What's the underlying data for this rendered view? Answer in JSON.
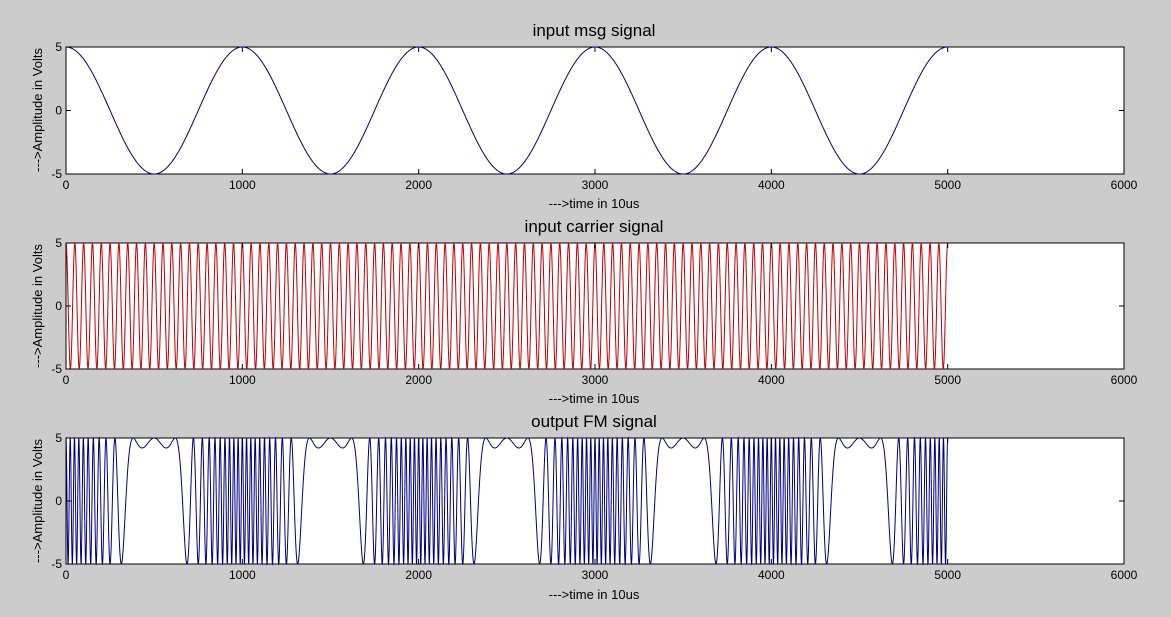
{
  "figure": {
    "background": "#cccccc"
  },
  "chart_data": [
    {
      "type": "line",
      "title": "input msg signal",
      "xlabel": "--->time in 10us",
      "ylabel": "--->Amplitude in Volts",
      "xlim": [
        0,
        6000
      ],
      "ylim": [
        -5,
        5
      ],
      "xticks": [
        0,
        1000,
        2000,
        3000,
        4000,
        5000,
        6000
      ],
      "yticks": [
        -5,
        0,
        5
      ],
      "grid": false,
      "series": [
        {
          "color": "#00007f",
          "signal": "cosine",
          "amplitude": 5,
          "period": 1000,
          "x_range": [
            0,
            5000
          ]
        }
      ]
    },
    {
      "type": "line",
      "title": "input carrier signal",
      "xlabel": "--->time in 10us",
      "ylabel": "--->Amplitude in Volts",
      "xlim": [
        0,
        6000
      ],
      "ylim": [
        -5,
        5
      ],
      "xticks": [
        0,
        1000,
        2000,
        3000,
        4000,
        5000,
        6000
      ],
      "yticks": [
        -5,
        0,
        5
      ],
      "grid": false,
      "series": [
        {
          "color": "#bf0000",
          "signal": "cosine",
          "amplitude": 5,
          "period": 50,
          "x_range": [
            0,
            5000
          ]
        }
      ]
    },
    {
      "type": "line",
      "title": "output FM signal",
      "xlabel": "--->time in 10us",
      "ylabel": "--->Amplitude in Volts",
      "xlim": [
        0,
        6000
      ],
      "ylim": [
        -5,
        5
      ],
      "xticks": [
        0,
        1000,
        2000,
        3000,
        4000,
        5000,
        6000
      ],
      "yticks": [
        -5,
        0,
        5
      ],
      "grid": false,
      "series": [
        {
          "color": "#00007f",
          "signal": "fm",
          "amplitude": 5,
          "carrier_period": 50,
          "message_period": 1000,
          "modulation_index": 22,
          "x_range": [
            0,
            5000
          ]
        }
      ]
    }
  ]
}
